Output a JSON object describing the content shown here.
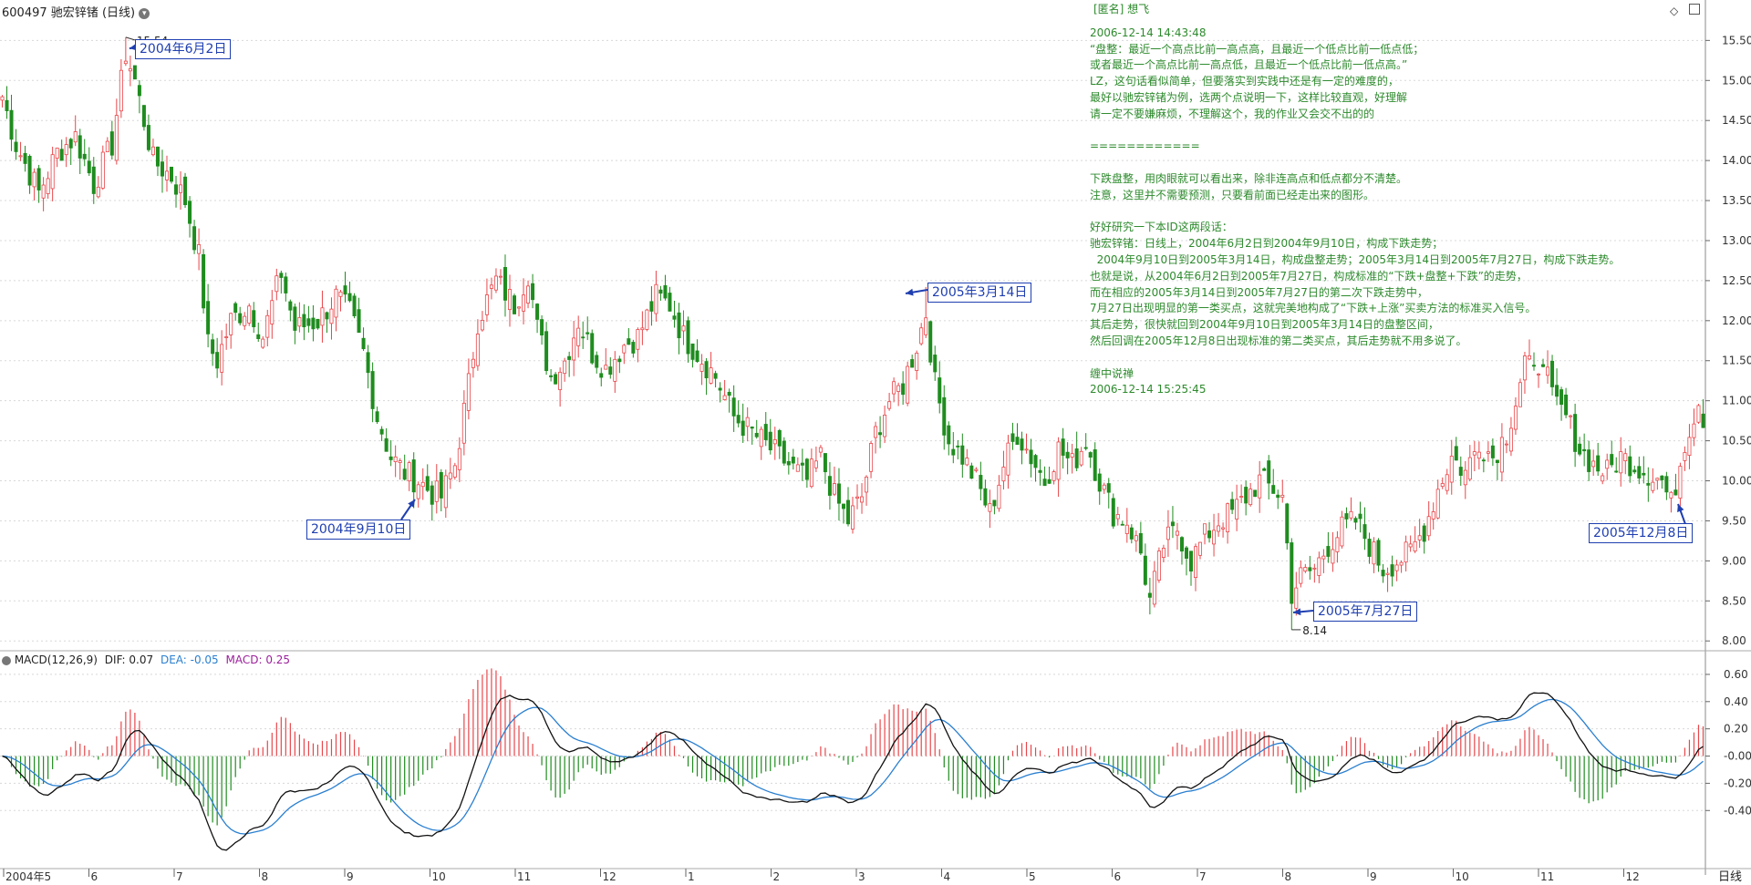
{
  "header": {
    "stock_code": "600497",
    "stock_name": "驰宏锌锗",
    "period": "(日线)"
  },
  "note": {
    "author": "[匿名] 想飞",
    "lines": [
      "2006-12-14 14:43:48",
      "“盘整：最近一个高点比前一高点高，且最近一个低点比前一低点低；",
      "或者最近一个高点比前一高点低，且最近一个低点比前一低点高。”",
      "LZ，这句话看似简单，但要落实到实践中还是有一定的难度的，",
      "最好以驰宏锌锗为例，选两个点说明一下，这样比较直观，好理解",
      "请一定不要嫌麻烦，不理解这个，我的作业又会交不出的的",
      "",
      "============",
      "",
      "下跌盘整，用肉眼就可以看出来，除非连高点和低点都分不清楚。",
      "注意，这里并不需要预测，只要看前面已经走出来的图形。",
      "",
      "好好研究一下本ID这两段话：",
      "驰宏锌锗：日线上，2004年6月2日到2004年9月10日，构成下跌走势；",
      "  2004年9月10日到2005年3月14日，构成盘整走势；2005年3月14日到2005年7月27日，构成下跌走势。",
      "也就是说，从2004年6月2日到2005年7月27日，构成标准的“下跌+盘整+下跌”的走势，",
      "而在相应的2005年3月14日到2005年7月27日的第二次下跌走势中，",
      "7月27日出现明显的第一类买点，这就完美地构成了“下跌+上涨”买卖方法的标准买入信号。",
      "其后走势，很快就回到2004年9月10日到2005年3月14日的盘整区间，",
      "然后回调在2005年12月8日出现标准的第二类买点，其后走势就不用多说了。",
      "",
      "缠中说禅",
      "2006-12-14 15:25:45"
    ]
  },
  "annotations": [
    {
      "label": "2004年6月2日"
    },
    {
      "label": "2004年9月10日"
    },
    {
      "label": "2005年3月14日"
    },
    {
      "label": "2005年7月27日"
    },
    {
      "label": "2005年12月8日"
    }
  ],
  "colors": {
    "up": "#e8464a",
    "down": "#1f8c1f",
    "dif": "#111111",
    "dea": "#2a7fd0",
    "annotation": "#1f3fb0",
    "note_text": "#2d8a2d",
    "grid": "#d8d8d8",
    "macd_label": "#9b1f9b"
  },
  "chart_data": [
    {
      "type": "candlestick",
      "series_name": "600497 驰宏锌锗 (日线)",
      "ylim": [
        7.9,
        15.8
      ],
      "y_ticks": [
        "15.50",
        "15.00",
        "14.50",
        "14.00",
        "13.50",
        "13.00",
        "12.50",
        "12.00",
        "11.50",
        "11.00",
        "10.50",
        "10.00",
        "9.50",
        "9.00",
        "8.50",
        "8.00"
      ],
      "x_ticks": [
        "2004年5",
        "6",
        "7",
        "8",
        "9",
        "10",
        "11",
        "12",
        "1",
        "2",
        "3",
        "4",
        "5",
        "6",
        "7",
        "8",
        "9",
        "10",
        "11",
        "12"
      ],
      "period_label": "日线",
      "price_labels": {
        "high": "15.54",
        "low": "8.14"
      },
      "anchors": [
        [
          0,
          14.8
        ],
        [
          3,
          14.2
        ],
        [
          8,
          13.6
        ],
        [
          12,
          14.1
        ],
        [
          16,
          14.3
        ],
        [
          20,
          13.7
        ],
        [
          24,
          14.2
        ],
        [
          27,
          15.35
        ],
        [
          29,
          15.0
        ],
        [
          33,
          14.0
        ],
        [
          37,
          13.8
        ],
        [
          40,
          13.5
        ],
        [
          43,
          12.8
        ],
        [
          45,
          11.7
        ],
        [
          47,
          11.5
        ],
        [
          50,
          12.0
        ],
        [
          54,
          12.2
        ],
        [
          57,
          11.8
        ],
        [
          61,
          12.6
        ],
        [
          64,
          11.9
        ],
        [
          69,
          12.0
        ],
        [
          73,
          12.3
        ],
        [
          76,
          12.1
        ],
        [
          79,
          11.6
        ],
        [
          82,
          10.8
        ],
        [
          85,
          10.3
        ],
        [
          88,
          10.1
        ],
        [
          91,
          10.0
        ],
        [
          94,
          9.85
        ],
        [
          96,
          9.8
        ],
        [
          99,
          10.2
        ],
        [
          102,
          11.2
        ],
        [
          104,
          12.0
        ],
        [
          108,
          12.5
        ],
        [
          112,
          12.2
        ],
        [
          115,
          12.6
        ],
        [
          117,
          11.9
        ],
        [
          120,
          11.3
        ],
        [
          123,
          11.5
        ],
        [
          126,
          12.0
        ],
        [
          129,
          11.6
        ],
        [
          132,
          11.4
        ],
        [
          136,
          11.7
        ],
        [
          139,
          11.8
        ],
        [
          143,
          12.3
        ],
        [
          146,
          12.2
        ],
        [
          149,
          11.8
        ],
        [
          152,
          11.6
        ],
        [
          156,
          11.3
        ],
        [
          160,
          10.8
        ],
        [
          164,
          10.6
        ],
        [
          168,
          10.4
        ],
        [
          172,
          10.2
        ],
        [
          176,
          10.0
        ],
        [
          179,
          10.3
        ],
        [
          182,
          9.8
        ],
        [
          185,
          9.5
        ],
        [
          188,
          9.8
        ],
        [
          191,
          10.6
        ],
        [
          194,
          11.0
        ],
        [
          197,
          11.2
        ],
        [
          200,
          11.7
        ],
        [
          202,
          12.1
        ],
        [
          204,
          11.2
        ],
        [
          207,
          10.5
        ],
        [
          210,
          10.3
        ],
        [
          213,
          10.0
        ],
        [
          216,
          9.6
        ],
        [
          219,
          10.2
        ],
        [
          222,
          10.6
        ],
        [
          225,
          10.3
        ],
        [
          228,
          10.0
        ],
        [
          231,
          10.4
        ],
        [
          234,
          10.2
        ],
        [
          237,
          10.5
        ],
        [
          240,
          10.0
        ],
        [
          243,
          9.6
        ],
        [
          246,
          9.5
        ],
        [
          249,
          9.1
        ],
        [
          251,
          8.5
        ],
        [
          254,
          9.2
        ],
        [
          257,
          9.4
        ],
        [
          260,
          9.0
        ],
        [
          263,
          9.3
        ],
        [
          266,
          9.5
        ],
        [
          269,
          9.6
        ],
        [
          272,
          9.8
        ],
        [
          275,
          10.0
        ],
        [
          278,
          9.9
        ],
        [
          280,
          9.8
        ],
        [
          282,
          8.6
        ],
        [
          284,
          8.8
        ],
        [
          287,
          8.9
        ],
        [
          290,
          9.2
        ],
        [
          293,
          9.4
        ],
        [
          296,
          9.5
        ],
        [
          299,
          9.2
        ],
        [
          302,
          8.9
        ],
        [
          305,
          9.0
        ],
        [
          308,
          9.1
        ],
        [
          311,
          9.4
        ],
        [
          314,
          9.9
        ],
        [
          317,
          10.3
        ],
        [
          320,
          10.1
        ],
        [
          323,
          10.5
        ],
        [
          326,
          10.3
        ],
        [
          329,
          10.6
        ],
        [
          331,
          11.0
        ],
        [
          333,
          11.5
        ],
        [
          335,
          11.3
        ],
        [
          337,
          11.6
        ],
        [
          339,
          11.0
        ],
        [
          342,
          10.8
        ],
        [
          345,
          10.4
        ],
        [
          348,
          10.2
        ],
        [
          351,
          10.1
        ],
        [
          354,
          10.3
        ],
        [
          357,
          10.2
        ],
        [
          360,
          10.1
        ],
        [
          363,
          10.0
        ],
        [
          365,
          9.7
        ],
        [
          368,
          10.5
        ],
        [
          371,
          11.0
        ],
        [
          372,
          10.8
        ]
      ],
      "bar_count": 373
    },
    {
      "type": "macd",
      "title": "MACD(12,26,9)",
      "dif": "DIF: 0.07",
      "dea": "DEA: -0.05",
      "macd": "MACD: 0.25",
      "ylim": [
        -0.82,
        0.72
      ],
      "y_ticks": [
        "0.60",
        "0.40",
        "0.20",
        "-0.00",
        "-0.20",
        "-0.40"
      ]
    }
  ]
}
